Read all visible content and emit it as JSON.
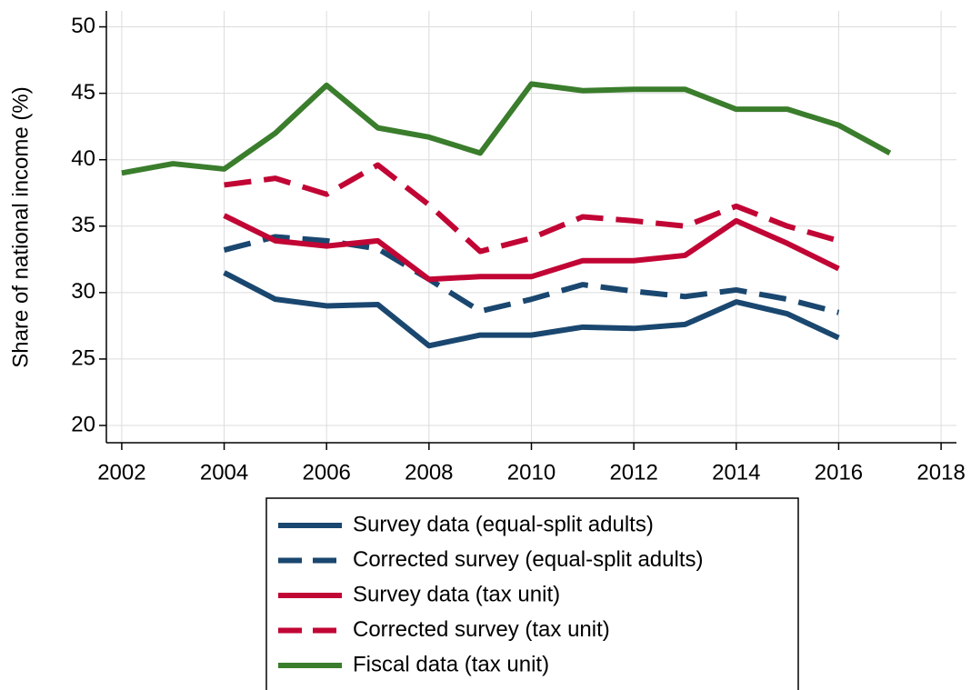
{
  "chart_data": {
    "type": "line",
    "ylabel": "Share of national income (%)",
    "x": [
      2002,
      2003,
      2004,
      2005,
      2006,
      2007,
      2008,
      2009,
      2010,
      2011,
      2012,
      2013,
      2014,
      2015,
      2016,
      2017
    ],
    "series": [
      {
        "name": "Survey data (equal-split adults)",
        "color": "#1a476f",
        "style": "solid",
        "values": [
          null,
          null,
          31.5,
          29.5,
          29.0,
          29.1,
          26.0,
          26.8,
          26.8,
          27.4,
          27.3,
          27.6,
          29.3,
          28.4,
          26.6,
          null
        ]
      },
      {
        "name": "Corrected survey (equal-split adults)",
        "color": "#1a476f",
        "style": "dashed",
        "values": [
          null,
          null,
          33.2,
          34.2,
          33.9,
          33.3,
          31.0,
          28.6,
          29.5,
          30.6,
          30.1,
          29.7,
          30.2,
          29.5,
          28.5,
          null
        ]
      },
      {
        "name": "Survey data (tax unit)",
        "color": "#c10534",
        "style": "solid",
        "values": [
          null,
          null,
          35.8,
          33.9,
          33.5,
          33.9,
          31.0,
          31.2,
          31.2,
          32.4,
          32.4,
          32.8,
          35.4,
          33.7,
          31.8,
          null
        ]
      },
      {
        "name": "Corrected survey (tax unit)",
        "color": "#c10534",
        "style": "dashed",
        "values": [
          null,
          null,
          38.1,
          38.6,
          37.4,
          39.6,
          36.6,
          33.1,
          34.1,
          35.7,
          35.4,
          35.0,
          36.5,
          35.0,
          33.9,
          null
        ]
      },
      {
        "name": "Fiscal data (tax unit)",
        "color": "#3a7d2c",
        "style": "solid",
        "values": [
          39.0,
          39.7,
          39.3,
          42.0,
          45.6,
          42.4,
          41.7,
          40.5,
          45.7,
          45.2,
          45.3,
          45.3,
          43.8,
          43.8,
          42.6,
          40.5
        ]
      }
    ],
    "xlim": [
      2001.7,
      2018.3
    ],
    "xticks": [
      2002,
      2004,
      2006,
      2008,
      2010,
      2012,
      2014,
      2016,
      2018
    ],
    "ylim": [
      18.7,
      51.2
    ],
    "yticks": [
      20,
      25,
      30,
      35,
      40,
      45,
      50
    ],
    "grid": true,
    "legend": "bottom"
  }
}
